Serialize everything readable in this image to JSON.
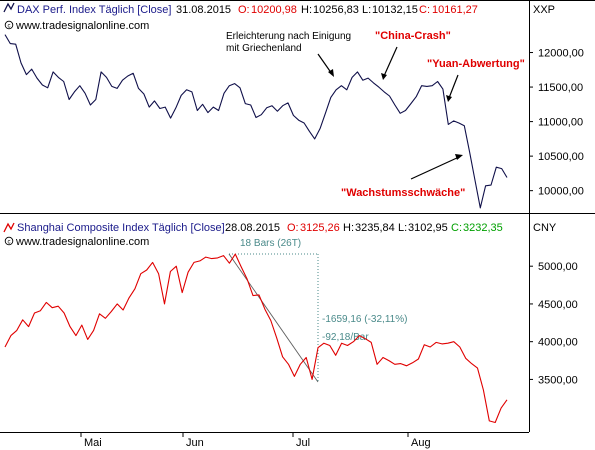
{
  "colors": {
    "dax_line": "#10104a",
    "shanghai_line": "#e00000",
    "annotation_red": "#e00000",
    "measure_teal": "#4a8a8a",
    "ohlc_red": "#e00000",
    "ohlc_green": "#00a000",
    "text_blue": "#1a1a8a",
    "axis": "#000000"
  },
  "icons": {
    "arrow": "arrow-icon",
    "copyright": "copyright-icon"
  },
  "chart_data": [
    {
      "type": "line",
      "series_name": "DAX Perf. Index Täglich [Close]",
      "date": "31.08.2015",
      "ohlc": {
        "o_label": "O:",
        "o_value": "10200,98",
        "h_label": "H:",
        "h_value": "10256,83",
        "l_label": "L:",
        "l_value": "10132,15",
        "c_label": "C:",
        "c_value": "10161,27"
      },
      "watermark": "www.tradesignalonline.com",
      "currency": "XXP",
      "y_ticks": [
        {
          "value": 12000,
          "label": "12000,00"
        },
        {
          "value": 11500,
          "label": "11500,00"
        },
        {
          "value": 11000,
          "label": "11000,00"
        },
        {
          "value": 10500,
          "label": "10500,00"
        },
        {
          "value": 10000,
          "label": "10000,00"
        }
      ],
      "ylim": [
        9720,
        12500
      ],
      "grid": false,
      "values": [
        12260,
        12130,
        12120,
        11850,
        11680,
        11760,
        11630,
        11530,
        11490,
        11720,
        11640,
        11580,
        11320,
        11430,
        11520,
        11410,
        11240,
        11320,
        11720,
        11640,
        11510,
        11480,
        11600,
        11660,
        11700,
        11480,
        11400,
        11210,
        11300,
        11190,
        11210,
        11050,
        11200,
        11380,
        11460,
        11430,
        11160,
        11250,
        11130,
        11210,
        11160,
        11410,
        11520,
        11550,
        11490,
        11260,
        11240,
        11060,
        11100,
        11200,
        11230,
        11150,
        11230,
        11270,
        11090,
        11020,
        10980,
        10860,
        10750,
        10900,
        11120,
        11350,
        11460,
        11520,
        11460,
        11640,
        11720,
        11600,
        11630,
        11560,
        11500,
        11430,
        11370,
        11240,
        11120,
        11160,
        11260,
        11360,
        11520,
        11510,
        11520,
        11580,
        11470,
        10960,
        11010,
        10980,
        10940,
        10560,
        10150,
        9750,
        10070,
        10080,
        10340,
        10320,
        10190
      ],
      "annotations": [
        {
          "text": "Erleichterung nach Einigung",
          "text2": "mit Griechenland",
          "style": "note"
        },
        {
          "text": "\"China-Crash\"",
          "style": "red"
        },
        {
          "text": "\"Yuan-Abwertung\"",
          "style": "red"
        },
        {
          "text": "\"Wachstumsschwäche\"",
          "style": "red"
        }
      ]
    },
    {
      "type": "line",
      "series_name": "Shanghai Composite Index Täglich [Close]",
      "date": "28.08.2015",
      "ohlc": {
        "o_label": "O:",
        "o_value": "3125,26",
        "h_label": "H:",
        "h_value": "3235,84",
        "l_label": "L:",
        "l_value": "3102,95",
        "c_label": "C:",
        "c_value": "3232,35"
      },
      "watermark": "www.tradesignalonline.com",
      "currency": "CNY",
      "y_ticks": [
        {
          "value": 5000,
          "label": "5000,00"
        },
        {
          "value": 4500,
          "label": "4500,00"
        },
        {
          "value": 4000,
          "label": "4000,00"
        },
        {
          "value": 3500,
          "label": "3500,00"
        }
      ],
      "ylim": [
        2830,
        5400
      ],
      "grid": false,
      "values": [
        3930,
        4080,
        4150,
        4290,
        4200,
        4380,
        4410,
        4520,
        4450,
        4470,
        4380,
        4200,
        4080,
        4220,
        4030,
        4150,
        4370,
        4310,
        4400,
        4500,
        4420,
        4580,
        4700,
        4900,
        4950,
        5050,
        4900,
        4500,
        4930,
        5000,
        4650,
        4920,
        5050,
        5070,
        5120,
        5100,
        5110,
        5140,
        5040,
        5160,
        4990,
        4830,
        4610,
        4620,
        4430,
        4280,
        4050,
        3800,
        3700,
        3540,
        3700,
        3790,
        3500,
        3920,
        3980,
        3950,
        3820,
        3980,
        3950,
        4000,
        4080,
        4040,
        3990,
        3700,
        3790,
        3750,
        3700,
        3710,
        3680,
        3720,
        3770,
        3960,
        3930,
        3990,
        3970,
        3980,
        4000,
        3930,
        3780,
        3710,
        3650,
        3360,
        2950,
        2930,
        3120,
        3230
      ],
      "measurement": {
        "bars_label": "18 Bars (26T)",
        "delta_label": "-1659,16 (-32,11%)",
        "per_bar_label": "-92,18/Bar"
      }
    }
  ],
  "x_axis": {
    "labels": [
      "Mai",
      "Jun",
      "Jul",
      "Aug"
    ]
  }
}
